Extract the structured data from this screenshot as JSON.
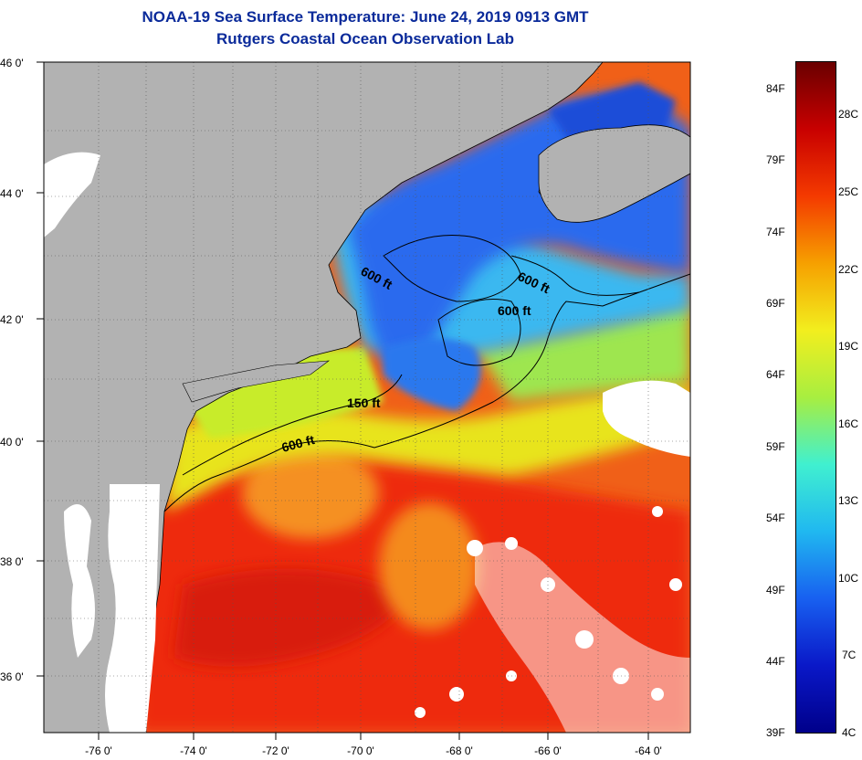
{
  "title": {
    "line1": "NOAA-19 Sea Surface Temperature:  June 24, 2019 0913 GMT",
    "line2": "Rutgers Coastal Ocean Observation Lab"
  },
  "map": {
    "lat_labels": [
      "46 0'",
      "44 0'",
      "42 0'",
      "40 0'",
      "38 0'",
      "36 0'"
    ],
    "lon_labels": [
      "-76 0'",
      "-74 0'",
      "-72 0'",
      "-70 0'",
      "-68 0'",
      "-66 0'",
      "-64 0'"
    ],
    "contour_labels": [
      "600 ft",
      "600 ft",
      "600 ft",
      "150 ft",
      "600 ft"
    ],
    "colors": {
      "land": "#b2b2b2",
      "cloud": "#ffffff",
      "gulf_stream": "#ee2a0c",
      "shelf_yellow": "#e8e41a",
      "gulf_of_maine": "#2a6aee",
      "cyan_shelf": "#3ab8f0"
    }
  },
  "colorbar": {
    "fahrenheit": [
      "84F",
      "79F",
      "74F",
      "69F",
      "64F",
      "59F",
      "54F",
      "49F",
      "44F",
      "39F"
    ],
    "celsius": [
      "28C",
      "25C",
      "22C",
      "19C",
      "16C",
      "13C",
      "10C",
      "7C",
      "4C"
    ],
    "gradient": [
      "#6a0000",
      "#c80000",
      "#f43a00",
      "#f6a000",
      "#f2ee1e",
      "#a8ee40",
      "#40f0d0",
      "#20b8f0",
      "#1860f0",
      "#0a18c8",
      "#00008a"
    ]
  }
}
